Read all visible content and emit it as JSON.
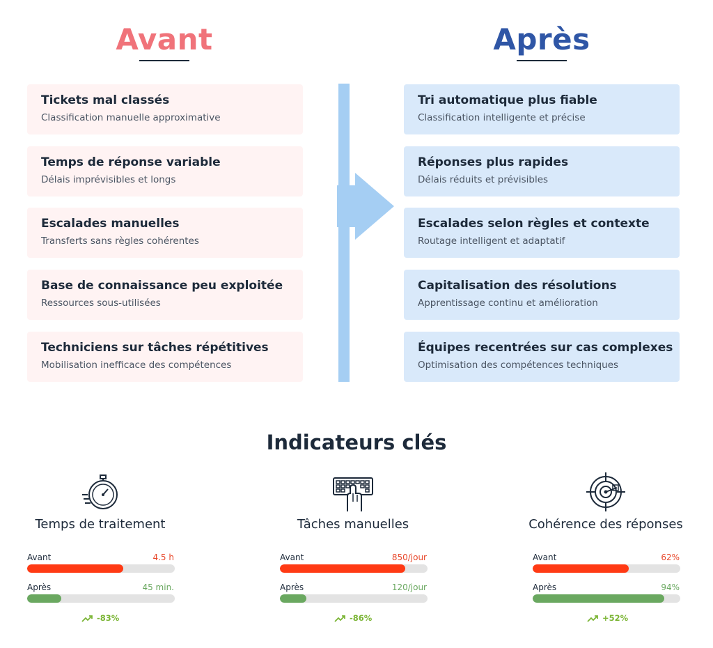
{
  "columns": {
    "before": {
      "title": "Avant",
      "items": [
        {
          "title": "Tickets mal classés",
          "subtitle": "Classification manuelle approximative"
        },
        {
          "title": "Temps de réponse variable",
          "subtitle": "Délais imprévisibles et longs"
        },
        {
          "title": "Escalades manuelles",
          "subtitle": "Transferts sans règles cohérentes"
        },
        {
          "title": "Base de connaissance peu exploitée",
          "subtitle": "Ressources sous-utilisées"
        },
        {
          "title": "Techniciens sur tâches répétitives",
          "subtitle": "Mobilisation inefficace des compétences"
        }
      ]
    },
    "after": {
      "title": "Après",
      "items": [
        {
          "title": "Tri automatique plus fiable",
          "subtitle": "Classification intelligente et précise"
        },
        {
          "title": "Réponses plus rapides",
          "subtitle": "Délais réduits et prévisibles"
        },
        {
          "title": "Escalades selon règles et contexte",
          "subtitle": "Routage intelligent et adaptatif"
        },
        {
          "title": "Capitalisation des résolutions",
          "subtitle": "Apprentissage continu et amélioration"
        },
        {
          "title": "Équipes recentrées sur cas complexes",
          "subtitle": "Optimisation des compétences techniques"
        }
      ]
    }
  },
  "kpis": {
    "heading": "Indicateurs clés",
    "items": [
      {
        "name": "Temps de traitement",
        "icon": "stopwatch-icon",
        "before_label": "Avant",
        "before_value": "4.5 h",
        "before_fill": 0.65,
        "after_label": "Après",
        "after_value": "45 min.",
        "after_fill": 0.23,
        "delta": "-83%"
      },
      {
        "name": "Tâches manuelles",
        "icon": "keyboard-hand-icon",
        "before_label": "Avant",
        "before_value": "850/jour",
        "before_fill": 0.85,
        "after_label": "Après",
        "after_value": "120/jour",
        "after_fill": 0.18,
        "delta": "-86%"
      },
      {
        "name": "Cohérence des réponses",
        "icon": "target-icon",
        "before_label": "Avant",
        "before_value": "62%",
        "before_fill": 0.65,
        "after_label": "Après",
        "after_value": "94%",
        "after_fill": 0.89,
        "delta": "+52%"
      }
    ]
  },
  "colors": {
    "before_title": "#f0737a",
    "after_title": "#2f56a6",
    "before_card": "#fff3f3",
    "after_card": "#d9e9fa",
    "arrow": "#a5cef3",
    "bar_before": "#ff3a14",
    "bar_after": "#6aa860",
    "delta": "#7bb535"
  }
}
